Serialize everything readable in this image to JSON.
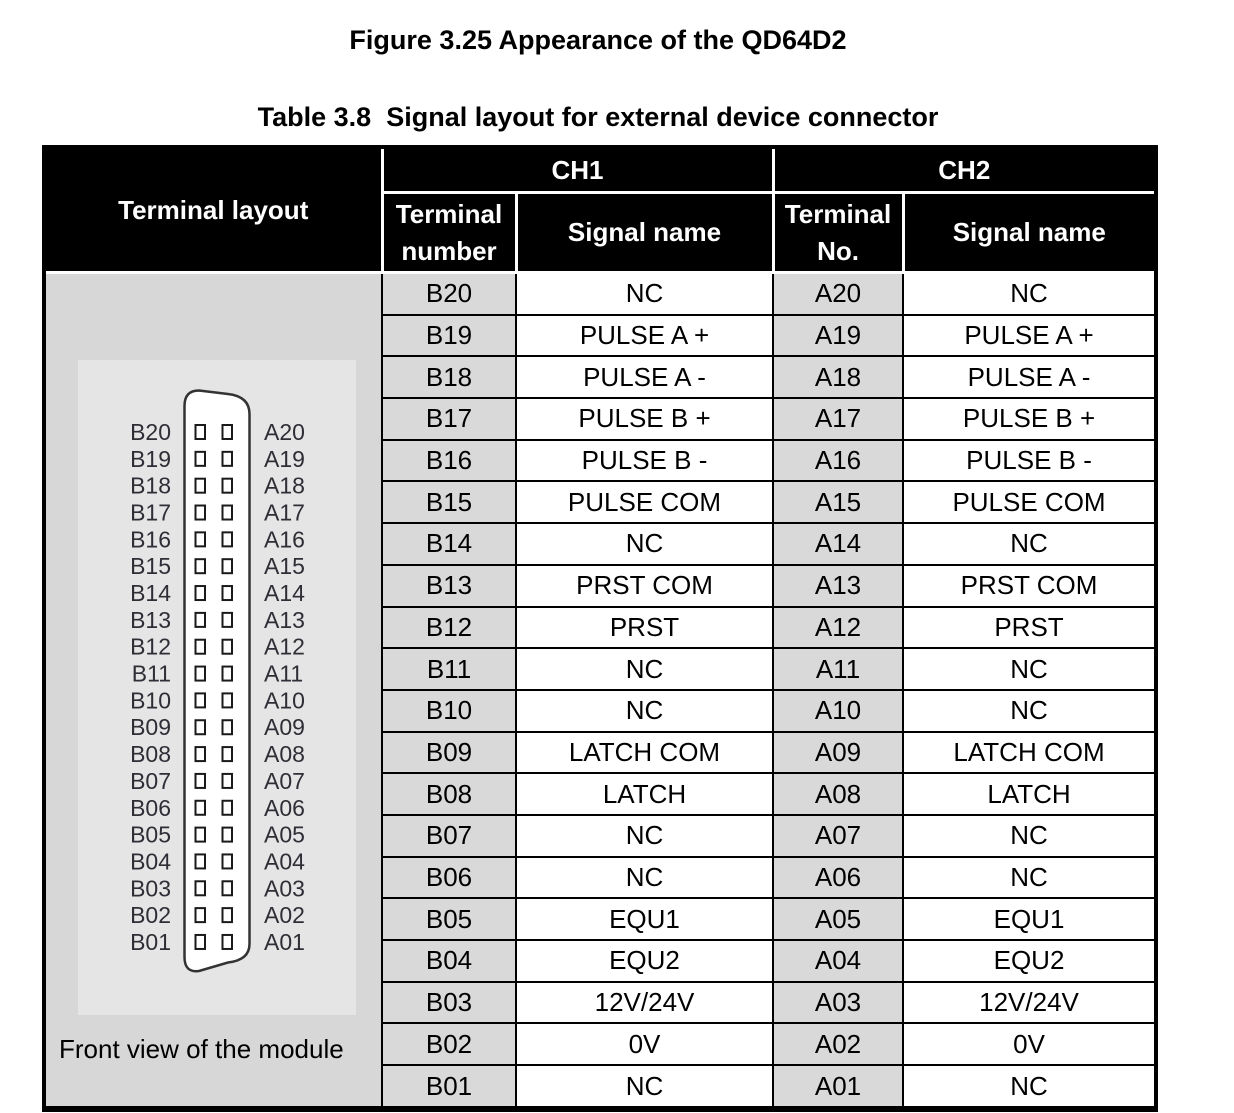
{
  "figure_title": "Figure 3.25 Appearance of the QD64D2",
  "table_title": "Table 3.8  Signal layout for external device connector",
  "table": {
    "corner_header": "Terminal layout",
    "groups": [
      {
        "label": "CH1",
        "terminal_header": "Terminal number",
        "signal_header": "Signal name"
      },
      {
        "label": "CH2",
        "terminal_header": "Terminal No.",
        "signal_header": "Signal name"
      }
    ],
    "rows": [
      {
        "ch1_terminal": "B20",
        "ch1_signal": "NC",
        "ch2_terminal": "A20",
        "ch2_signal": "NC"
      },
      {
        "ch1_terminal": "B19",
        "ch1_signal": "PULSE A +",
        "ch2_terminal": "A19",
        "ch2_signal": "PULSE A +"
      },
      {
        "ch1_terminal": "B18",
        "ch1_signal": "PULSE A -",
        "ch2_terminal": "A18",
        "ch2_signal": "PULSE A -"
      },
      {
        "ch1_terminal": "B17",
        "ch1_signal": "PULSE B +",
        "ch2_terminal": "A17",
        "ch2_signal": "PULSE B +"
      },
      {
        "ch1_terminal": "B16",
        "ch1_signal": "PULSE B -",
        "ch2_terminal": "A16",
        "ch2_signal": "PULSE B -"
      },
      {
        "ch1_terminal": "B15",
        "ch1_signal": "PULSE COM",
        "ch2_terminal": "A15",
        "ch2_signal": "PULSE COM"
      },
      {
        "ch1_terminal": "B14",
        "ch1_signal": "NC",
        "ch2_terminal": "A14",
        "ch2_signal": "NC"
      },
      {
        "ch1_terminal": "B13",
        "ch1_signal": "PRST COM",
        "ch2_terminal": "A13",
        "ch2_signal": "PRST COM"
      },
      {
        "ch1_terminal": "B12",
        "ch1_signal": "PRST",
        "ch2_terminal": "A12",
        "ch2_signal": "PRST"
      },
      {
        "ch1_terminal": "B11",
        "ch1_signal": "NC",
        "ch2_terminal": "A11",
        "ch2_signal": "NC"
      },
      {
        "ch1_terminal": "B10",
        "ch1_signal": "NC",
        "ch2_terminal": "A10",
        "ch2_signal": "NC"
      },
      {
        "ch1_terminal": "B09",
        "ch1_signal": "LATCH COM",
        "ch2_terminal": "A09",
        "ch2_signal": "LATCH COM"
      },
      {
        "ch1_terminal": "B08",
        "ch1_signal": "LATCH",
        "ch2_terminal": "A08",
        "ch2_signal": "LATCH"
      },
      {
        "ch1_terminal": "B07",
        "ch1_signal": "NC",
        "ch2_terminal": "A07",
        "ch2_signal": "NC"
      },
      {
        "ch1_terminal": "B06",
        "ch1_signal": "NC",
        "ch2_terminal": "A06",
        "ch2_signal": "NC"
      },
      {
        "ch1_terminal": "B05",
        "ch1_signal": "EQU1",
        "ch2_terminal": "A05",
        "ch2_signal": "EQU1"
      },
      {
        "ch1_terminal": "B04",
        "ch1_signal": "EQU2",
        "ch2_terminal": "A04",
        "ch2_signal": "EQU2"
      },
      {
        "ch1_terminal": "B03",
        "ch1_signal": "12V/24V",
        "ch2_terminal": "A03",
        "ch2_signal": "12V/24V"
      },
      {
        "ch1_terminal": "B02",
        "ch1_signal": "0V",
        "ch2_terminal": "A02",
        "ch2_signal": "0V"
      },
      {
        "ch1_terminal": "B01",
        "ch1_signal": "NC",
        "ch2_terminal": "A01",
        "ch2_signal": "NC"
      }
    ]
  },
  "terminal_layout": {
    "left_pins": [
      "B20",
      "B19",
      "B18",
      "B17",
      "B16",
      "B15",
      "B14",
      "B13",
      "B12",
      "B11",
      "B10",
      "B09",
      "B08",
      "B07",
      "B06",
      "B05",
      "B04",
      "B03",
      "B02",
      "B01"
    ],
    "right_pins": [
      "A20",
      "A19",
      "A18",
      "A17",
      "A16",
      "A15",
      "A14",
      "A13",
      "A12",
      "A11",
      "A10",
      "A09",
      "A08",
      "A07",
      "A06",
      "A05",
      "A04",
      "A03",
      "A02",
      "A01"
    ],
    "caption": "Front view of the module"
  },
  "colors": {
    "header_bg": "#000000",
    "header_text": "#ffffff",
    "terminal_cell_bg": "#d9d9d9",
    "layout_cell_bg": "#d7d7d7",
    "panel_bg": "#e5e5e5",
    "table_border": "#000000",
    "pin_label_text": "#2e2e36"
  }
}
